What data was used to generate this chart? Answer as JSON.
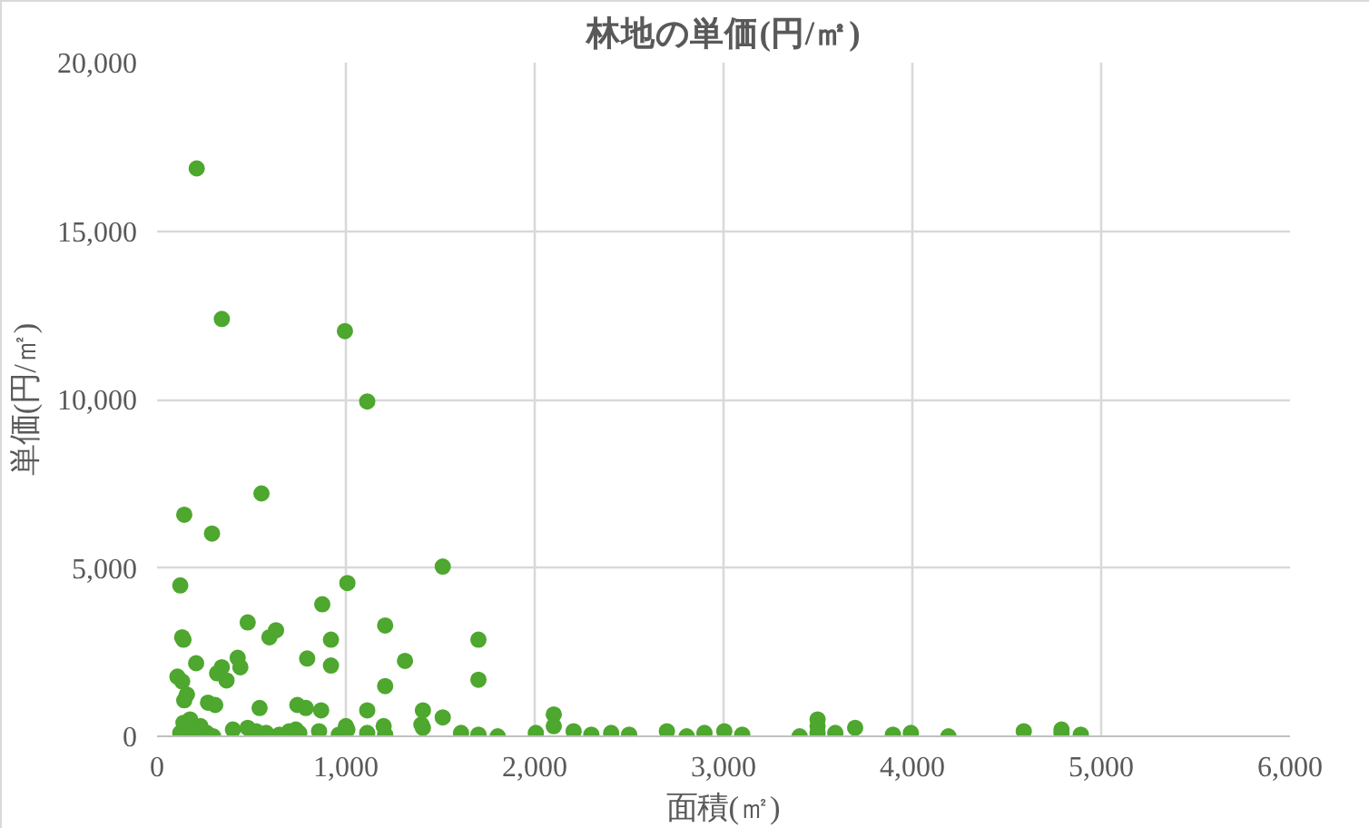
{
  "chart_data": {
    "type": "scatter",
    "title": "林地の単価(円/㎡)",
    "xlabel": "面積(㎡)",
    "ylabel": "単価(円/㎡)",
    "xlim": [
      0,
      6000
    ],
    "ylim": [
      0,
      20000
    ],
    "xticks": [
      0,
      {
        "value": 1000,
        "label": "1,000"
      },
      {
        "value": 2000,
        "label": "2,000"
      },
      {
        "value": 3000,
        "label": "3,000"
      },
      {
        "value": 4000,
        "label": "4,000"
      },
      {
        "value": 5000,
        "label": "5,000"
      },
      {
        "value": 6000,
        "label": "6,000"
      }
    ],
    "yticks": [
      0,
      {
        "value": 5000,
        "label": "5,000"
      },
      {
        "value": 10000,
        "label": "10,000"
      },
      {
        "value": 15000,
        "label": "15,000"
      },
      {
        "value": 20000,
        "label": "20,000"
      }
    ],
    "grid": true,
    "marker": "circle",
    "series": [
      {
        "color": "#4ea72e",
        "x": [
          210,
          343,
          995,
          1113,
          553,
          144,
          291,
          123,
          1008,
          1513,
          875,
          480,
          595,
          630,
          133,
          140,
          921,
          1208,
          1702,
          207,
          343,
          318,
          368,
          427,
          441,
          795,
          921,
          1313,
          1702,
          108,
          133,
          158,
          144,
          1208,
          270,
          308,
          543,
          743,
          788,
          869,
          1113,
          1408,
          1513,
          123,
          192,
          263,
          297,
          402,
          525,
          578,
          648,
          735,
          753,
          858,
          963,
          1008,
          1113,
          1208,
          1408,
          1610,
          1702,
          1804,
          2006,
          2101,
          2101,
          2206,
          2300,
          2405,
          2500,
          2700,
          2805,
          2899,
          3004,
          3099,
          3403,
          3498,
          3498,
          3498,
          3592,
          3697,
          3897,
          3992,
          4191,
          4590,
          4790,
          4790,
          4892,
          140,
          175,
          230,
          480,
          700,
          1000,
          1200,
          1400
        ],
        "values": [
          16860,
          12390,
          12030,
          9940,
          7210,
          6580,
          6020,
          4480,
          4550,
          5040,
          3920,
          3380,
          2940,
          3150,
          2940,
          2870,
          2870,
          3290,
          2870,
          2170,
          2050,
          1870,
          1660,
          2330,
          2050,
          2310,
          2100,
          2240,
          1680,
          1770,
          1630,
          1240,
          1070,
          1490,
          1000,
          930,
          840,
          930,
          840,
          770,
          770,
          770,
          560,
          100,
          50,
          100,
          0,
          200,
          150,
          100,
          50,
          200,
          100,
          150,
          50,
          200,
          100,
          50,
          250,
          100,
          50,
          0,
          100,
          650,
          300,
          150,
          50,
          100,
          50,
          150,
          0,
          100,
          150,
          50,
          0,
          500,
          300,
          100,
          100,
          250,
          50,
          100,
          0,
          150,
          100,
          200,
          50,
          400,
          500,
          300,
          250,
          150,
          300,
          300,
          350
        ]
      }
    ]
  }
}
